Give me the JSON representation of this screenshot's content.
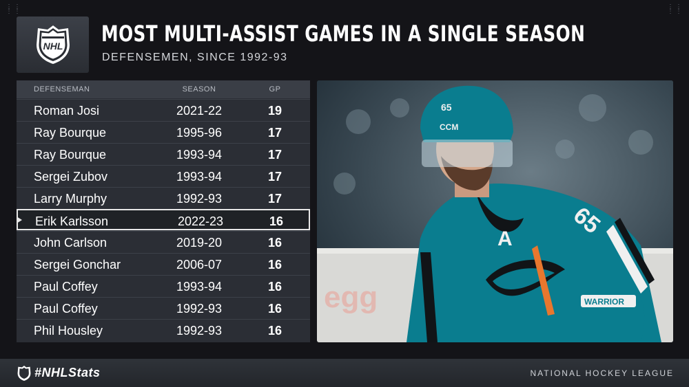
{
  "header": {
    "title": "MOST MULTI-ASSIST GAMES IN A SINGLE SEASON",
    "subtitle": "DEFENSEMEN, SINCE 1992-93",
    "logo_icon": "nhl-shield-icon"
  },
  "table": {
    "columns": {
      "name": "DEFENSEMAN",
      "season": "SEASON",
      "gp": "GP"
    },
    "rows": [
      {
        "name": "Roman Josi",
        "season": "2021-22",
        "gp": "19"
      },
      {
        "name": "Ray Bourque",
        "season": "1995-96",
        "gp": "17"
      },
      {
        "name": "Ray Bourque",
        "season": "1993-94",
        "gp": "17"
      },
      {
        "name": "Sergei Zubov",
        "season": "1993-94",
        "gp": "17"
      },
      {
        "name": "Larry Murphy",
        "season": "1992-93",
        "gp": "17"
      },
      {
        "name": "Erik Karlsson",
        "season": "2022-23",
        "gp": "16",
        "highlighted": true
      },
      {
        "name": "John Carlson",
        "season": "2019-20",
        "gp": "16"
      },
      {
        "name": "Sergei Gonchar",
        "season": "2006-07",
        "gp": "16"
      },
      {
        "name": "Paul Coffey",
        "season": "1993-94",
        "gp": "16"
      },
      {
        "name": "Paul Coffey",
        "season": "1992-93",
        "gp": "16"
      },
      {
        "name": "Phil Housley",
        "season": "1992-93",
        "gp": "16"
      }
    ]
  },
  "photo": {
    "jersey_number": "65",
    "captain_letter": "A",
    "helmet_brand": "CCM",
    "glove_brand": "WARRIOR",
    "colors": {
      "teal": "#0a7d8f",
      "black": "#111417",
      "white": "#f0f0f0",
      "orange": "#e8772e"
    }
  },
  "footer": {
    "hashtag": "#NHLStats",
    "league": "NATIONAL HOCKEY LEAGUE"
  },
  "colors": {
    "background": "#141418",
    "table_bg": "#2b2e35",
    "header_bg": "#3a3e46",
    "highlight_border": "#e8e8e8"
  }
}
